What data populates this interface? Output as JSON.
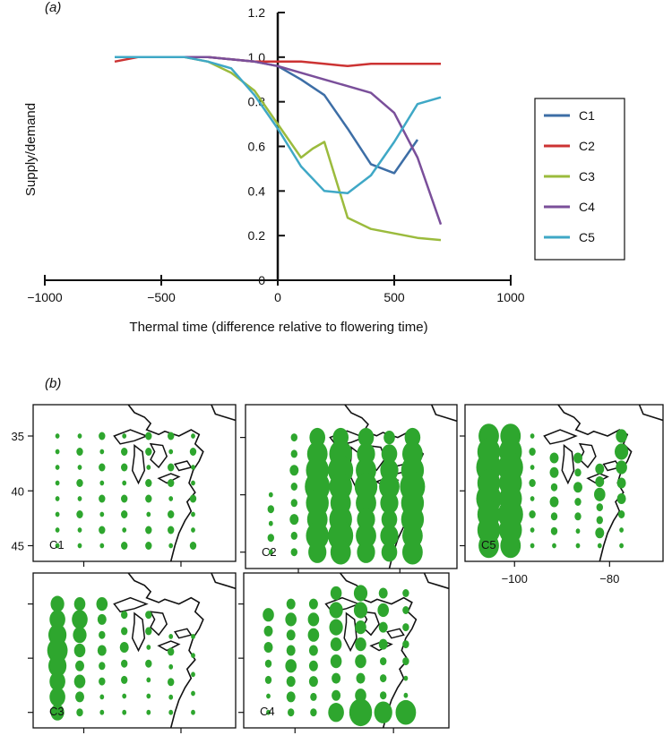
{
  "panel_a": {
    "tag": "(a)"
  },
  "panel_b": {
    "tag": "(b)"
  },
  "chart_data": [
    {
      "type": "line",
      "xlabel": "Thermal time (difference relative to flowering time)",
      "ylabel": "Supply/demand",
      "xlim": [
        -1000,
        1000
      ],
      "ylim": [
        0,
        1.2
      ],
      "xticks": [
        -1000,
        -500,
        0,
        500,
        1000
      ],
      "yticks": [
        0,
        0.2,
        0.4,
        0.6,
        0.8,
        1.0,
        1.2
      ],
      "xtick_labels": [
        "−1000",
        "−500",
        "0",
        "500",
        "1000"
      ],
      "ytick_labels": [
        "0",
        "0.2",
        "0.4",
        "0.6",
        "0.8",
        "1.0",
        "1.2"
      ],
      "legend_position": "right",
      "grid": false,
      "series": [
        {
          "name": "C1",
          "color": "#3d6ea6",
          "x": [
            -700,
            -600,
            -500,
            -400,
            -300,
            -200,
            -100,
            0,
            100,
            200,
            300,
            400,
            500,
            600
          ],
          "y": [
            1.0,
            1.0,
            1.0,
            1.0,
            1.0,
            0.99,
            0.98,
            0.96,
            0.9,
            0.83,
            0.68,
            0.52,
            0.48,
            0.63
          ]
        },
        {
          "name": "C2",
          "color": "#cc3333",
          "x": [
            -700,
            -600,
            -500,
            -400,
            -300,
            -200,
            -100,
            0,
            100,
            200,
            300,
            400,
            500,
            600,
            700
          ],
          "y": [
            0.98,
            1.0,
            1.0,
            1.0,
            1.0,
            0.99,
            0.98,
            0.98,
            0.98,
            0.97,
            0.96,
            0.97,
            0.97,
            0.97,
            0.97
          ]
        },
        {
          "name": "C3",
          "color": "#9bbb3d",
          "x": [
            -700,
            -600,
            -500,
            -400,
            -300,
            -200,
            -100,
            0,
            100,
            150,
            200,
            300,
            400,
            500,
            600,
            700
          ],
          "y": [
            1.0,
            1.0,
            1.0,
            1.0,
            0.98,
            0.93,
            0.85,
            0.7,
            0.55,
            0.59,
            0.62,
            0.28,
            0.23,
            0.21,
            0.19,
            0.18
          ]
        },
        {
          "name": "C4",
          "color": "#7a4f9a",
          "x": [
            -700,
            -600,
            -500,
            -400,
            -300,
            -200,
            -100,
            0,
            100,
            200,
            300,
            400,
            500,
            600,
            700
          ],
          "y": [
            1.0,
            1.0,
            1.0,
            1.0,
            1.0,
            0.99,
            0.98,
            0.96,
            0.93,
            0.9,
            0.87,
            0.84,
            0.75,
            0.55,
            0.25
          ]
        },
        {
          "name": "C5",
          "color": "#3fa8c6",
          "x": [
            -700,
            -600,
            -500,
            -400,
            -300,
            -200,
            -100,
            0,
            100,
            200,
            300,
            400,
            500,
            600,
            700
          ],
          "y": [
            1.0,
            1.0,
            1.0,
            1.0,
            0.98,
            0.95,
            0.83,
            0.68,
            0.51,
            0.4,
            0.39,
            0.47,
            0.62,
            0.79,
            0.82
          ]
        }
      ]
    },
    {
      "type": "scatter",
      "map_color": "#2ea62e",
      "panels": [
        {
          "name": "C1",
          "label": "C1",
          "yticks": [
            "35",
            "40",
            "45"
          ],
          "xticks": [],
          "columns": [
            {
              "lon": -110,
              "lat": [
                35,
                45
              ],
              "sizes": [
                1,
                1,
                1,
                1,
                1,
                1,
                1,
                1
              ]
            },
            {
              "lon": -105,
              "lat": [
                35,
                45
              ],
              "sizes": [
                1,
                2,
                1,
                2,
                1,
                2,
                1,
                1
              ]
            },
            {
              "lon": -100,
              "lat": [
                35,
                45
              ],
              "sizes": [
                2,
                1,
                2,
                1,
                2,
                1,
                2,
                1
              ]
            },
            {
              "lon": -95,
              "lat": [
                35,
                45
              ],
              "sizes": [
                1,
                2,
                2,
                1,
                2,
                2,
                1,
                2
              ]
            },
            {
              "lon": -90,
              "lat": [
                35,
                45
              ],
              "sizes": [
                2,
                2,
                1,
                2,
                2,
                1,
                2,
                2
              ]
            },
            {
              "lon": -85,
              "lat": [
                35,
                45
              ],
              "sizes": [
                2,
                1,
                2,
                2,
                1,
                2,
                2,
                1
              ]
            },
            {
              "lon": -80,
              "lat": [
                35,
                45
              ],
              "sizes": [
                1,
                2,
                1,
                1,
                2,
                1,
                1,
                2
              ]
            }
          ]
        },
        {
          "name": "C2",
          "label": "C2",
          "yticks": [],
          "xticks": [],
          "columns": [
            {
              "lon": -110,
              "lat": [
                35,
                40
              ],
              "sizes": [
                1,
                2,
                1,
                2,
                1
              ]
            },
            {
              "lon": -105,
              "lat": [
                35,
                45
              ],
              "sizes": [
                2,
                2,
                3,
                2,
                2,
                3,
                2,
                2
              ]
            },
            {
              "lon": -100,
              "lat": [
                35,
                45
              ],
              "sizes": [
                6,
                8,
                9,
                10,
                9,
                8,
                9,
                7
              ]
            },
            {
              "lon": -95,
              "lat": [
                35,
                45
              ],
              "sizes": [
                6,
                9,
                10,
                9,
                8,
                9,
                10,
                8
              ]
            },
            {
              "lon": -90,
              "lat": [
                35,
                45
              ],
              "sizes": [
                6,
                7,
                8,
                9,
                8,
                7,
                8,
                7
              ]
            },
            {
              "lon": -85,
              "lat": [
                35,
                45
              ],
              "sizes": [
                4,
                6,
                7,
                8,
                7,
                6,
                7,
                6
              ]
            },
            {
              "lon": -80,
              "lat": [
                35,
                45
              ],
              "sizes": [
                6,
                8,
                9,
                10,
                9,
                9,
                8,
                8
              ]
            }
          ]
        },
        {
          "name": "C5",
          "label": "C5",
          "yticks": [],
          "xticks": [
            "−100",
            "−80"
          ],
          "columns": [
            {
              "lon": -110,
              "lat": [
                35,
                45
              ],
              "sizes": [
                8,
                9,
                10,
                9,
                10,
                9,
                9,
                8
              ]
            },
            {
              "lon": -105,
              "lat": [
                35,
                45
              ],
              "sizes": [
                8,
                9,
                10,
                9,
                9,
                10,
                9,
                8
              ]
            },
            {
              "lon": -100,
              "lat": [
                35,
                45
              ],
              "sizes": [
                1,
                2,
                1,
                2,
                1,
                2,
                1,
                1
              ]
            },
            {
              "lon": -95,
              "lat": [
                35,
                43
              ],
              "sizes": [
                3,
                3,
                2,
                3,
                2,
                2,
                1
              ]
            },
            {
              "lon": -90,
              "lat": [
                35,
                43
              ],
              "sizes": [
                3,
                2,
                3,
                2,
                2,
                1,
                1
              ]
            },
            {
              "lon": -85,
              "lat": [
                35,
                42
              ],
              "sizes": [
                3,
                3,
                4,
                2,
                2,
                3,
                1
              ]
            },
            {
              "lon": -80,
              "lat": [
                35,
                45
              ],
              "sizes": [
                4,
                5,
                4,
                3,
                3,
                2,
                1,
                1
              ]
            }
          ]
        },
        {
          "name": "C3",
          "label": "C3",
          "yticks": [],
          "xticks": [],
          "columns": [
            {
              "lon": -110,
              "lat": [
                35,
                45
              ],
              "sizes": [
                5,
                6,
                7,
                8,
                7,
                6,
                6,
                5
              ]
            },
            {
              "lon": -105,
              "lat": [
                35,
                45
              ],
              "sizes": [
                4,
                6,
                5,
                4,
                3,
                4,
                3,
                2
              ]
            },
            {
              "lon": -100,
              "lat": [
                35,
                45
              ],
              "sizes": [
                4,
                3,
                2,
                3,
                2,
                2,
                1,
                1
              ]
            },
            {
              "lon": -95,
              "lat": [
                35,
                44
              ],
              "sizes": [
                2,
                2,
                3,
                2,
                2,
                1,
                1
              ]
            },
            {
              "lon": -90,
              "lat": [
                35,
                44
              ],
              "sizes": [
                2,
                2,
                1,
                2,
                1,
                1,
                1
              ]
            },
            {
              "lon": -85,
              "lat": [
                35,
                42
              ],
              "sizes": [
                1,
                2,
                1,
                2,
                1,
                1
              ]
            },
            {
              "lon": -80,
              "lat": [
                35,
                42
              ],
              "sizes": [
                1,
                1,
                1,
                1,
                1
              ]
            }
          ]
        },
        {
          "name": "C4",
          "label": "C4",
          "yticks": [],
          "xticks": [],
          "columns": [
            {
              "lon": -110,
              "lat": [
                35,
                44
              ],
              "sizes": [
                4,
                3,
                3,
                2,
                2,
                1,
                1
              ]
            },
            {
              "lon": -105,
              "lat": [
                35,
                45
              ],
              "sizes": [
                3,
                4,
                3,
                3,
                4,
                3,
                3,
                2
              ]
            },
            {
              "lon": -100,
              "lat": [
                35,
                45
              ],
              "sizes": [
                3,
                4,
                4,
                3,
                3,
                3,
                2,
                2
              ]
            },
            {
              "lon": -95,
              "lat": [
                35,
                46
              ],
              "sizes": [
                4,
                5,
                5,
                4,
                4,
                3,
                3,
                6
              ]
            },
            {
              "lon": -90,
              "lat": [
                35,
                46
              ],
              "sizes": [
                5,
                5,
                4,
                4,
                4,
                3,
                4,
                9
              ]
            },
            {
              "lon": -85,
              "lat": [
                35,
                46
              ],
              "sizes": [
                3,
                4,
                3,
                3,
                2,
                2,
                2,
                7
              ]
            },
            {
              "lon": -80,
              "lat": [
                35,
                46
              ],
              "sizes": [
                2,
                2,
                2,
                2,
                2,
                1,
                1,
                8
              ]
            }
          ]
        }
      ]
    }
  ]
}
